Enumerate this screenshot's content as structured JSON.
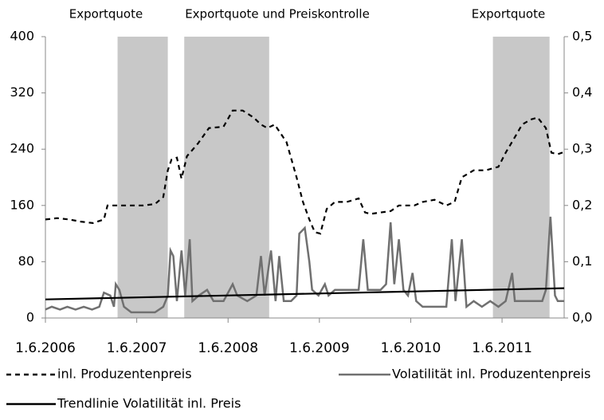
{
  "chart_data": {
    "type": "line",
    "annotations": [
      {
        "label": "Exportquote",
        "x0": 2007.21,
        "x1": 2007.76
      },
      {
        "label": "Exportquote und Preiskontrolle",
        "x0": 2007.94,
        "x1": 2008.87
      },
      {
        "label": "Exportquote",
        "x0": 2011.32,
        "x1": 2011.94
      }
    ],
    "shade_color": "#c8c8c8",
    "xlim": [
      2006.42,
      2012.1
    ],
    "xticks": [
      {
        "value": 2006.42,
        "label": "1.6.2006"
      },
      {
        "value": 2007.42,
        "label": "1.6.2007"
      },
      {
        "value": 2008.42,
        "label": "1.6.2008"
      },
      {
        "value": 2009.42,
        "label": "1.6.2009"
      },
      {
        "value": 2010.42,
        "label": "1.6.2010"
      },
      {
        "value": 2011.42,
        "label": "1.6.2011"
      }
    ],
    "ylim": [
      0,
      400
    ],
    "yticks": [
      0,
      80,
      160,
      240,
      320,
      400
    ],
    "y2lim": [
      0,
      0.5
    ],
    "y2ticks": [
      {
        "value": 0,
        "label": "0,0"
      },
      {
        "value": 0.1,
        "label": "0,1"
      },
      {
        "value": 0.2,
        "label": "0,2"
      },
      {
        "value": 0.3,
        "label": "0,3"
      },
      {
        "value": 0.4,
        "label": "0,4"
      },
      {
        "value": 0.5,
        "label": "0,5"
      }
    ],
    "series": [
      {
        "name": "inl. Produzentenpreis",
        "color": "#000000",
        "style": "dashed",
        "x": [
          2006.42,
          2006.55,
          2006.68,
          2006.81,
          2006.94,
          2007.06,
          2007.1,
          2007.23,
          2007.36,
          2007.49,
          2007.62,
          2007.71,
          2007.76,
          2007.8,
          2007.86,
          2007.91,
          2007.97,
          2008.09,
          2008.21,
          2008.37,
          2008.47,
          2008.58,
          2008.7,
          2008.78,
          2008.85,
          2008.93,
          2009.06,
          2009.17,
          2009.24,
          2009.31,
          2009.37,
          2009.43,
          2009.5,
          2009.59,
          2009.72,
          2009.85,
          2009.92,
          2009.98,
          2010.09,
          2010.2,
          2010.29,
          2010.39,
          2010.46,
          2010.55,
          2010.68,
          2010.81,
          2010.9,
          2010.98,
          2011.11,
          2011.24,
          2011.38,
          2011.46,
          2011.55,
          2011.64,
          2011.73,
          2011.81,
          2011.9,
          2011.96,
          2012.03,
          2012.1
        ],
        "values": [
          140,
          142,
          140,
          137,
          135,
          140,
          160,
          160,
          160,
          160,
          162,
          172,
          210,
          225,
          228,
          198,
          230,
          248,
          270,
          272,
          295,
          295,
          285,
          275,
          270,
          275,
          250,
          200,
          165,
          140,
          122,
          120,
          155,
          165,
          165,
          170,
          150,
          148,
          150,
          152,
          160,
          160,
          160,
          165,
          168,
          160,
          165,
          200,
          210,
          210,
          215,
          235,
          255,
          275,
          282,
          285,
          270,
          235,
          233,
          236
        ]
      },
      {
        "name": "Volatilität inl. Produzentenpreis",
        "color": "#707070",
        "style": "solid",
        "axis": "y2",
        "x": [
          2006.42,
          2006.49,
          2006.58,
          2006.66,
          2006.75,
          2006.84,
          2006.93,
          2007.01,
          2007.06,
          2007.13,
          2007.17,
          2007.19,
          2007.23,
          2007.28,
          2007.36,
          2007.49,
          2007.62,
          2007.71,
          2007.76,
          2007.79,
          2007.82,
          2007.86,
          2007.91,
          2007.95,
          2008.0,
          2008.03,
          2008.1,
          2008.19,
          2008.26,
          2008.37,
          2008.47,
          2008.52,
          2008.63,
          2008.73,
          2008.78,
          2008.82,
          2008.89,
          2008.94,
          2008.98,
          2009.03,
          2009.11,
          2009.17,
          2009.2,
          2009.26,
          2009.31,
          2009.34,
          2009.41,
          2009.48,
          2009.52,
          2009.59,
          2009.67,
          2009.76,
          2009.85,
          2009.9,
          2009.95,
          2010.02,
          2010.09,
          2010.15,
          2010.2,
          2010.24,
          2010.29,
          2010.34,
          2010.39,
          2010.44,
          2010.48,
          2010.55,
          2010.68,
          2010.81,
          2010.87,
          2010.91,
          2010.98,
          2011.03,
          2011.11,
          2011.2,
          2011.29,
          2011.38,
          2011.46,
          2011.53,
          2011.56,
          2011.64,
          2011.73,
          2011.86,
          2011.9,
          2011.95,
          2012.0,
          2012.03,
          2012.1
        ],
        "values": [
          0.015,
          0.02,
          0.015,
          0.02,
          0.015,
          0.02,
          0.015,
          0.02,
          0.045,
          0.04,
          0.02,
          0.06,
          0.05,
          0.02,
          0.01,
          0.01,
          0.01,
          0.02,
          0.04,
          0.12,
          0.11,
          0.03,
          0.12,
          0.04,
          0.14,
          0.03,
          0.04,
          0.05,
          0.03,
          0.03,
          0.06,
          0.04,
          0.03,
          0.04,
          0.11,
          0.04,
          0.12,
          0.03,
          0.11,
          0.03,
          0.03,
          0.04,
          0.15,
          0.16,
          0.1,
          0.05,
          0.04,
          0.06,
          0.04,
          0.05,
          0.05,
          0.05,
          0.05,
          0.14,
          0.05,
          0.05,
          0.05,
          0.06,
          0.17,
          0.06,
          0.14,
          0.05,
          0.04,
          0.08,
          0.03,
          0.02,
          0.02,
          0.02,
          0.14,
          0.03,
          0.14,
          0.02,
          0.03,
          0.02,
          0.03,
          0.02,
          0.03,
          0.08,
          0.03,
          0.03,
          0.03,
          0.03,
          0.05,
          0.18,
          0.04,
          0.03,
          0.03
        ]
      },
      {
        "name": "Trendlinie Volatilität inl. Preis",
        "color": "#000000",
        "style": "solid",
        "axis": "y2",
        "x": [
          2006.42,
          2012.1
        ],
        "values": [
          0.033,
          0.053
        ]
      }
    ]
  }
}
